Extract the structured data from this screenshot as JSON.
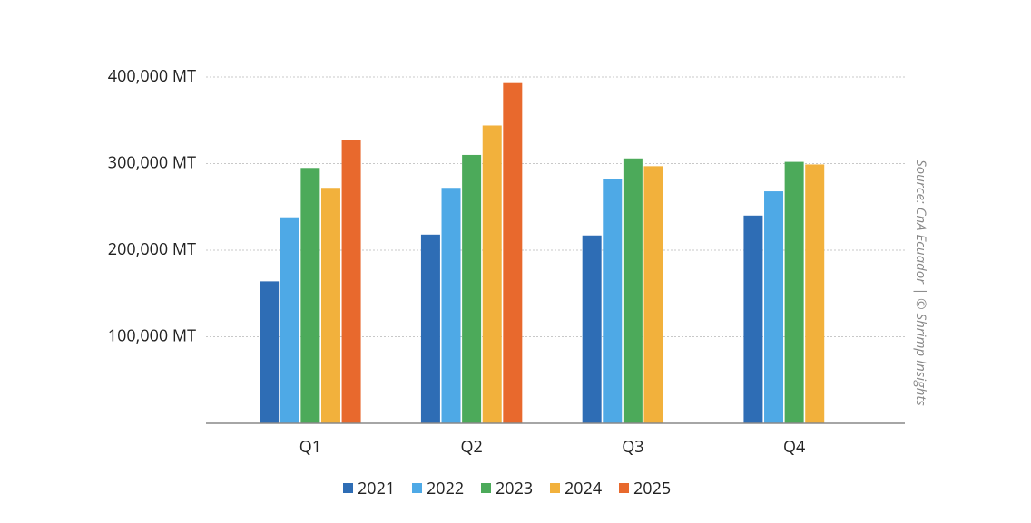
{
  "chart_data": {
    "type": "bar",
    "categories": [
      "Q1",
      "Q2",
      "Q3",
      "Q4"
    ],
    "series": [
      {
        "name": "2021",
        "color": "#2e6db5",
        "values": [
          164000,
          218000,
          217000,
          240000
        ]
      },
      {
        "name": "2022",
        "color": "#4ea9e6",
        "values": [
          238000,
          272000,
          282000,
          268000
        ]
      },
      {
        "name": "2023",
        "color": "#4caa5a",
        "values": [
          295000,
          310000,
          306000,
          302000
        ]
      },
      {
        "name": "2024",
        "color": "#f2b13c",
        "values": [
          272000,
          344000,
          297000,
          299000
        ]
      },
      {
        "name": "2025",
        "color": "#e8692d",
        "values": [
          327000,
          393000,
          null,
          null
        ]
      }
    ],
    "ylim": [
      0,
      400000
    ],
    "yticks": [
      {
        "value": 100000,
        "label": "100,000 MT"
      },
      {
        "value": 200000,
        "label": "200,000 MT"
      },
      {
        "value": 300000,
        "label": "300,000 MT"
      },
      {
        "value": 400000,
        "label": "400,000 MT"
      }
    ],
    "grid": true,
    "legend": "bottom",
    "source": "Source: CnA Ecuador | © Shrimp Insights"
  }
}
